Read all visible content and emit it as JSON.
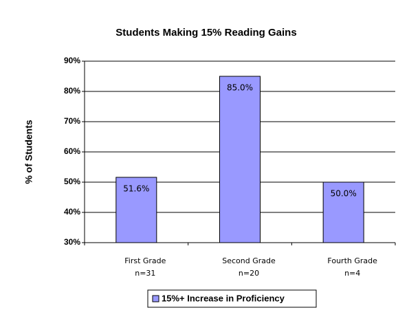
{
  "chart_data": {
    "type": "bar",
    "title": "Students Making 15% Reading Gains",
    "y_label": "% of Students",
    "categories": [
      "First Grade",
      "Second Grade",
      "Fourth Grade"
    ],
    "category_notes": [
      "n=31",
      "n=20",
      "n=4"
    ],
    "series": [
      {
        "name": "15%+ Increase in Proficiency",
        "color": "#9999ff",
        "values": [
          51.6,
          85,
          50
        ],
        "value_labels": [
          "51.6%",
          "85.0%",
          "50.0%"
        ]
      }
    ],
    "ylim": [
      30,
      90
    ],
    "yticks": [
      {
        "value": 30,
        "label": "30%"
      },
      {
        "value": 40,
        "label": "40%"
      },
      {
        "value": 50,
        "label": "50%"
      },
      {
        "value": 60,
        "label": "60%"
      },
      {
        "value": 70,
        "label": "70%"
      },
      {
        "value": 80,
        "label": "80%"
      },
      {
        "value": 90,
        "label": "90%"
      }
    ],
    "grid": true,
    "legend": "bottom"
  }
}
